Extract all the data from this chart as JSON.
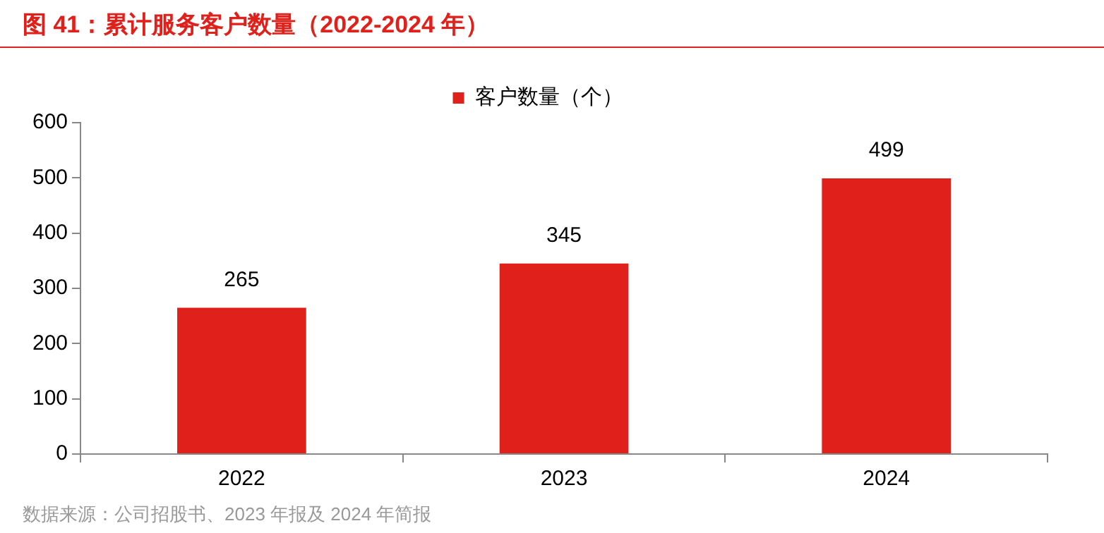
{
  "chart_data": {
    "type": "bar",
    "title": "图 41：累计服务客户数量（2022-2024 年）",
    "categories": [
      "2022",
      "2023",
      "2024"
    ],
    "series": [
      {
        "name": "客户数量（个）",
        "color": "#e0201b",
        "values": [
          265,
          345,
          499
        ]
      }
    ],
    "ylim": [
      0,
      600
    ],
    "yticks": [
      0,
      100,
      200,
      300,
      400,
      500,
      600
    ],
    "grid": false,
    "legend": "top",
    "data_labels": true,
    "annotations": [
      "数据来源：公司招股书、2023 年报及 2024 年简报"
    ]
  }
}
